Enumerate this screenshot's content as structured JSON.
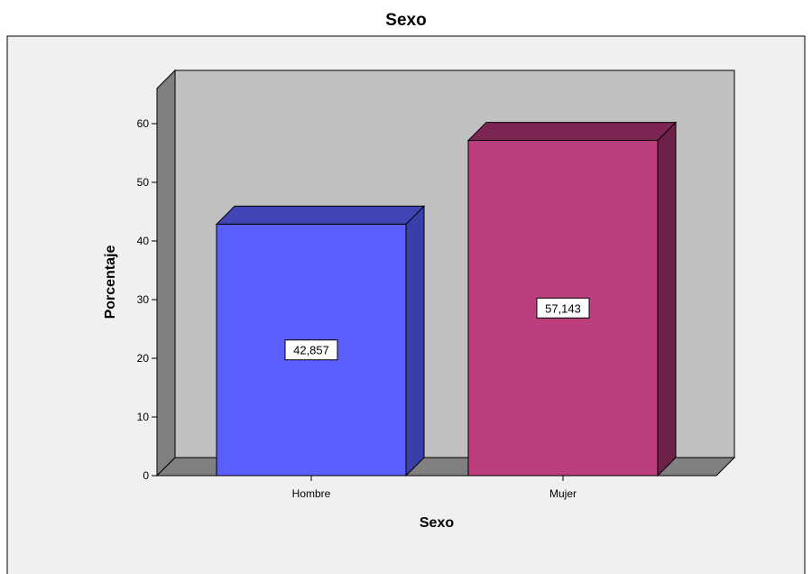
{
  "chart_data": {
    "type": "bar",
    "title": "Sexo",
    "xlabel": "Sexo",
    "ylabel": "Porcentaje",
    "categories": [
      "Hombre",
      "Mujer"
    ],
    "values": [
      42.857,
      57.143
    ],
    "data_labels": [
      "42,857",
      "57,143"
    ],
    "yticks": [
      0,
      10,
      20,
      30,
      40,
      50,
      60
    ],
    "ylim": [
      0,
      66
    ],
    "grid": false,
    "style": "3d",
    "colors": {
      "frame_bg": "#f0f0f0",
      "wall": "#c0c0c0",
      "wall_side": "#808080",
      "bars": [
        {
          "front": "#5a5ffe",
          "top": "#4044b5",
          "side": "#3a3ea8"
        },
        {
          "front": "#bc3e7c",
          "top": "#7d2552",
          "side": "#6e2148"
        }
      ]
    }
  }
}
